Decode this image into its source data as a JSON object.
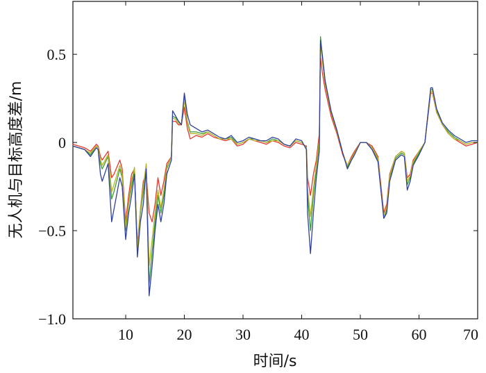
{
  "chart_data": {
    "type": "line",
    "title": "",
    "xlabel": "时间/s",
    "ylabel": "无人机与目标高度差/m",
    "xlim": [
      1,
      70
    ],
    "ylim": [
      -1.0,
      0.8
    ],
    "xticks": [
      10,
      20,
      30,
      40,
      50,
      60,
      70
    ],
    "xtick_labels": [
      "10",
      "20",
      "30",
      "40",
      "50",
      "60",
      "70"
    ],
    "yticks": [
      -1.0,
      -0.5,
      0,
      0.5
    ],
    "ytick_labels": [
      "−1.0",
      "−0.5",
      "0",
      "0.5"
    ],
    "grid": false,
    "legend": "none",
    "x": [
      1,
      3,
      4,
      5,
      5.3,
      5.7,
      6,
      7,
      7.6,
      8,
      9,
      9.4,
      10,
      10.5,
      11,
      11.5,
      12,
      12.5,
      13,
      13.5,
      14,
      14.5,
      15,
      15.5,
      16,
      16.5,
      17,
      17.8,
      18,
      18.5,
      19,
      19.5,
      20,
      20.5,
      21,
      22,
      23,
      24,
      25,
      26,
      27,
      28,
      29,
      30,
      31,
      32,
      33,
      34,
      35,
      36,
      37,
      38,
      39,
      40,
      40.8,
      41,
      41.5,
      42,
      42.5,
      43,
      43.2,
      43.5,
      44,
      45,
      46,
      47,
      47.8,
      48.5,
      49,
      50,
      51,
      52,
      53,
      54,
      54.5,
      55,
      56,
      57,
      57.5,
      58,
      58.5,
      59,
      60,
      61,
      62,
      62.3,
      63,
      64,
      65,
      66,
      67,
      68,
      69,
      70
    ],
    "series": [
      {
        "color": "#e8352a",
        "values": [
          -0.01,
          -0.03,
          -0.05,
          -0.01,
          -0.02,
          -0.08,
          -0.1,
          -0.05,
          -0.2,
          -0.18,
          -0.1,
          -0.15,
          -0.45,
          -0.3,
          -0.18,
          -0.15,
          -0.58,
          -0.38,
          -0.22,
          -0.18,
          -0.4,
          -0.45,
          -0.35,
          -0.2,
          -0.3,
          -0.22,
          -0.12,
          -0.08,
          0.12,
          0.12,
          0.1,
          0.1,
          0.2,
          0.08,
          0.02,
          0.04,
          0.03,
          0.05,
          0.03,
          0.02,
          0.01,
          0.02,
          -0.02,
          -0.01,
          0.02,
          0.01,
          0.0,
          -0.01,
          0.01,
          0.0,
          -0.02,
          -0.03,
          0.0,
          -0.01,
          -0.02,
          -0.2,
          -0.3,
          -0.18,
          -0.1,
          0.05,
          0.48,
          0.4,
          0.3,
          0.15,
          0.05,
          -0.07,
          -0.13,
          -0.08,
          -0.05,
          0.0,
          0.0,
          -0.02,
          -0.08,
          -0.4,
          -0.35,
          -0.18,
          -0.08,
          -0.05,
          -0.06,
          -0.2,
          -0.18,
          -0.1,
          -0.05,
          0.0,
          0.28,
          0.28,
          0.17,
          0.1,
          0.05,
          0.02,
          0.0,
          -0.02,
          -0.01,
          0.0
        ]
      },
      {
        "color": "#3a9e2e",
        "values": [
          -0.02,
          -0.04,
          -0.07,
          -0.02,
          -0.03,
          -0.12,
          -0.15,
          -0.08,
          -0.32,
          -0.28,
          -0.15,
          -0.2,
          -0.5,
          -0.35,
          -0.25,
          -0.15,
          -0.6,
          -0.4,
          -0.28,
          -0.13,
          -0.8,
          -0.62,
          -0.45,
          -0.3,
          -0.4,
          -0.3,
          -0.15,
          -0.08,
          0.15,
          0.14,
          0.12,
          0.1,
          0.26,
          0.12,
          0.06,
          0.06,
          0.05,
          0.06,
          0.04,
          0.02,
          0.02,
          0.03,
          -0.01,
          0.0,
          0.02,
          0.02,
          0.01,
          0.0,
          0.02,
          0.01,
          -0.01,
          -0.02,
          0.01,
          0.0,
          -0.03,
          -0.3,
          -0.5,
          -0.3,
          -0.15,
          0.0,
          0.6,
          0.5,
          0.35,
          0.18,
          0.07,
          -0.06,
          -0.14,
          -0.09,
          -0.06,
          0.0,
          0.0,
          -0.03,
          -0.1,
          -0.43,
          -0.38,
          -0.2,
          -0.09,
          -0.06,
          -0.07,
          -0.24,
          -0.2,
          -0.12,
          -0.06,
          0.0,
          0.3,
          0.3,
          0.18,
          0.1,
          0.06,
          0.03,
          0.01,
          -0.01,
          0.0,
          0.0
        ]
      },
      {
        "color": "#b8b22a",
        "values": [
          -0.02,
          -0.04,
          -0.06,
          -0.02,
          -0.03,
          -0.1,
          -0.13,
          -0.07,
          -0.28,
          -0.24,
          -0.13,
          -0.18,
          -0.48,
          -0.34,
          -0.22,
          -0.14,
          -0.6,
          -0.38,
          -0.25,
          -0.12,
          -0.7,
          -0.55,
          -0.4,
          -0.27,
          -0.37,
          -0.27,
          -0.14,
          -0.08,
          0.14,
          0.13,
          0.11,
          0.1,
          0.24,
          0.11,
          0.05,
          0.05,
          0.04,
          0.06,
          0.04,
          0.02,
          0.02,
          0.02,
          -0.01,
          0.0,
          0.02,
          0.01,
          0.01,
          0.0,
          0.01,
          0.01,
          -0.01,
          -0.02,
          0.01,
          0.0,
          -0.03,
          -0.26,
          -0.42,
          -0.26,
          -0.13,
          0.02,
          0.57,
          0.47,
          0.33,
          0.17,
          0.06,
          -0.06,
          -0.13,
          -0.09,
          -0.06,
          0.0,
          0.0,
          -0.03,
          -0.09,
          -0.42,
          -0.37,
          -0.19,
          -0.08,
          -0.05,
          -0.06,
          -0.22,
          -0.19,
          -0.11,
          -0.05,
          0.0,
          0.29,
          0.29,
          0.17,
          0.1,
          0.05,
          0.02,
          0.01,
          -0.01,
          0.0,
          0.0
        ]
      },
      {
        "color": "#2f3f9c",
        "values": [
          -0.02,
          -0.04,
          -0.08,
          -0.03,
          -0.04,
          -0.18,
          -0.22,
          -0.12,
          -0.45,
          -0.38,
          -0.2,
          -0.25,
          -0.55,
          -0.4,
          -0.3,
          -0.18,
          -0.65,
          -0.45,
          -0.35,
          -0.15,
          -0.87,
          -0.7,
          -0.5,
          -0.35,
          -0.45,
          -0.35,
          -0.18,
          -0.1,
          0.18,
          0.15,
          0.12,
          0.1,
          0.28,
          0.16,
          0.1,
          0.08,
          0.06,
          0.07,
          0.05,
          0.03,
          0.02,
          0.04,
          0.0,
          0.01,
          0.03,
          0.02,
          0.01,
          0.01,
          0.03,
          0.02,
          -0.01,
          -0.02,
          0.02,
          0.01,
          -0.04,
          -0.4,
          -0.63,
          -0.4,
          -0.2,
          -0.05,
          0.58,
          0.5,
          0.35,
          0.18,
          0.07,
          -0.06,
          -0.15,
          -0.1,
          -0.07,
          0.0,
          0.0,
          -0.04,
          -0.11,
          -0.43,
          -0.4,
          -0.22,
          -0.1,
          -0.07,
          -0.08,
          -0.27,
          -0.22,
          -0.13,
          -0.07,
          0.0,
          0.31,
          0.31,
          0.19,
          0.11,
          0.07,
          0.04,
          0.02,
          0.0,
          0.01,
          0.01
        ]
      }
    ]
  }
}
